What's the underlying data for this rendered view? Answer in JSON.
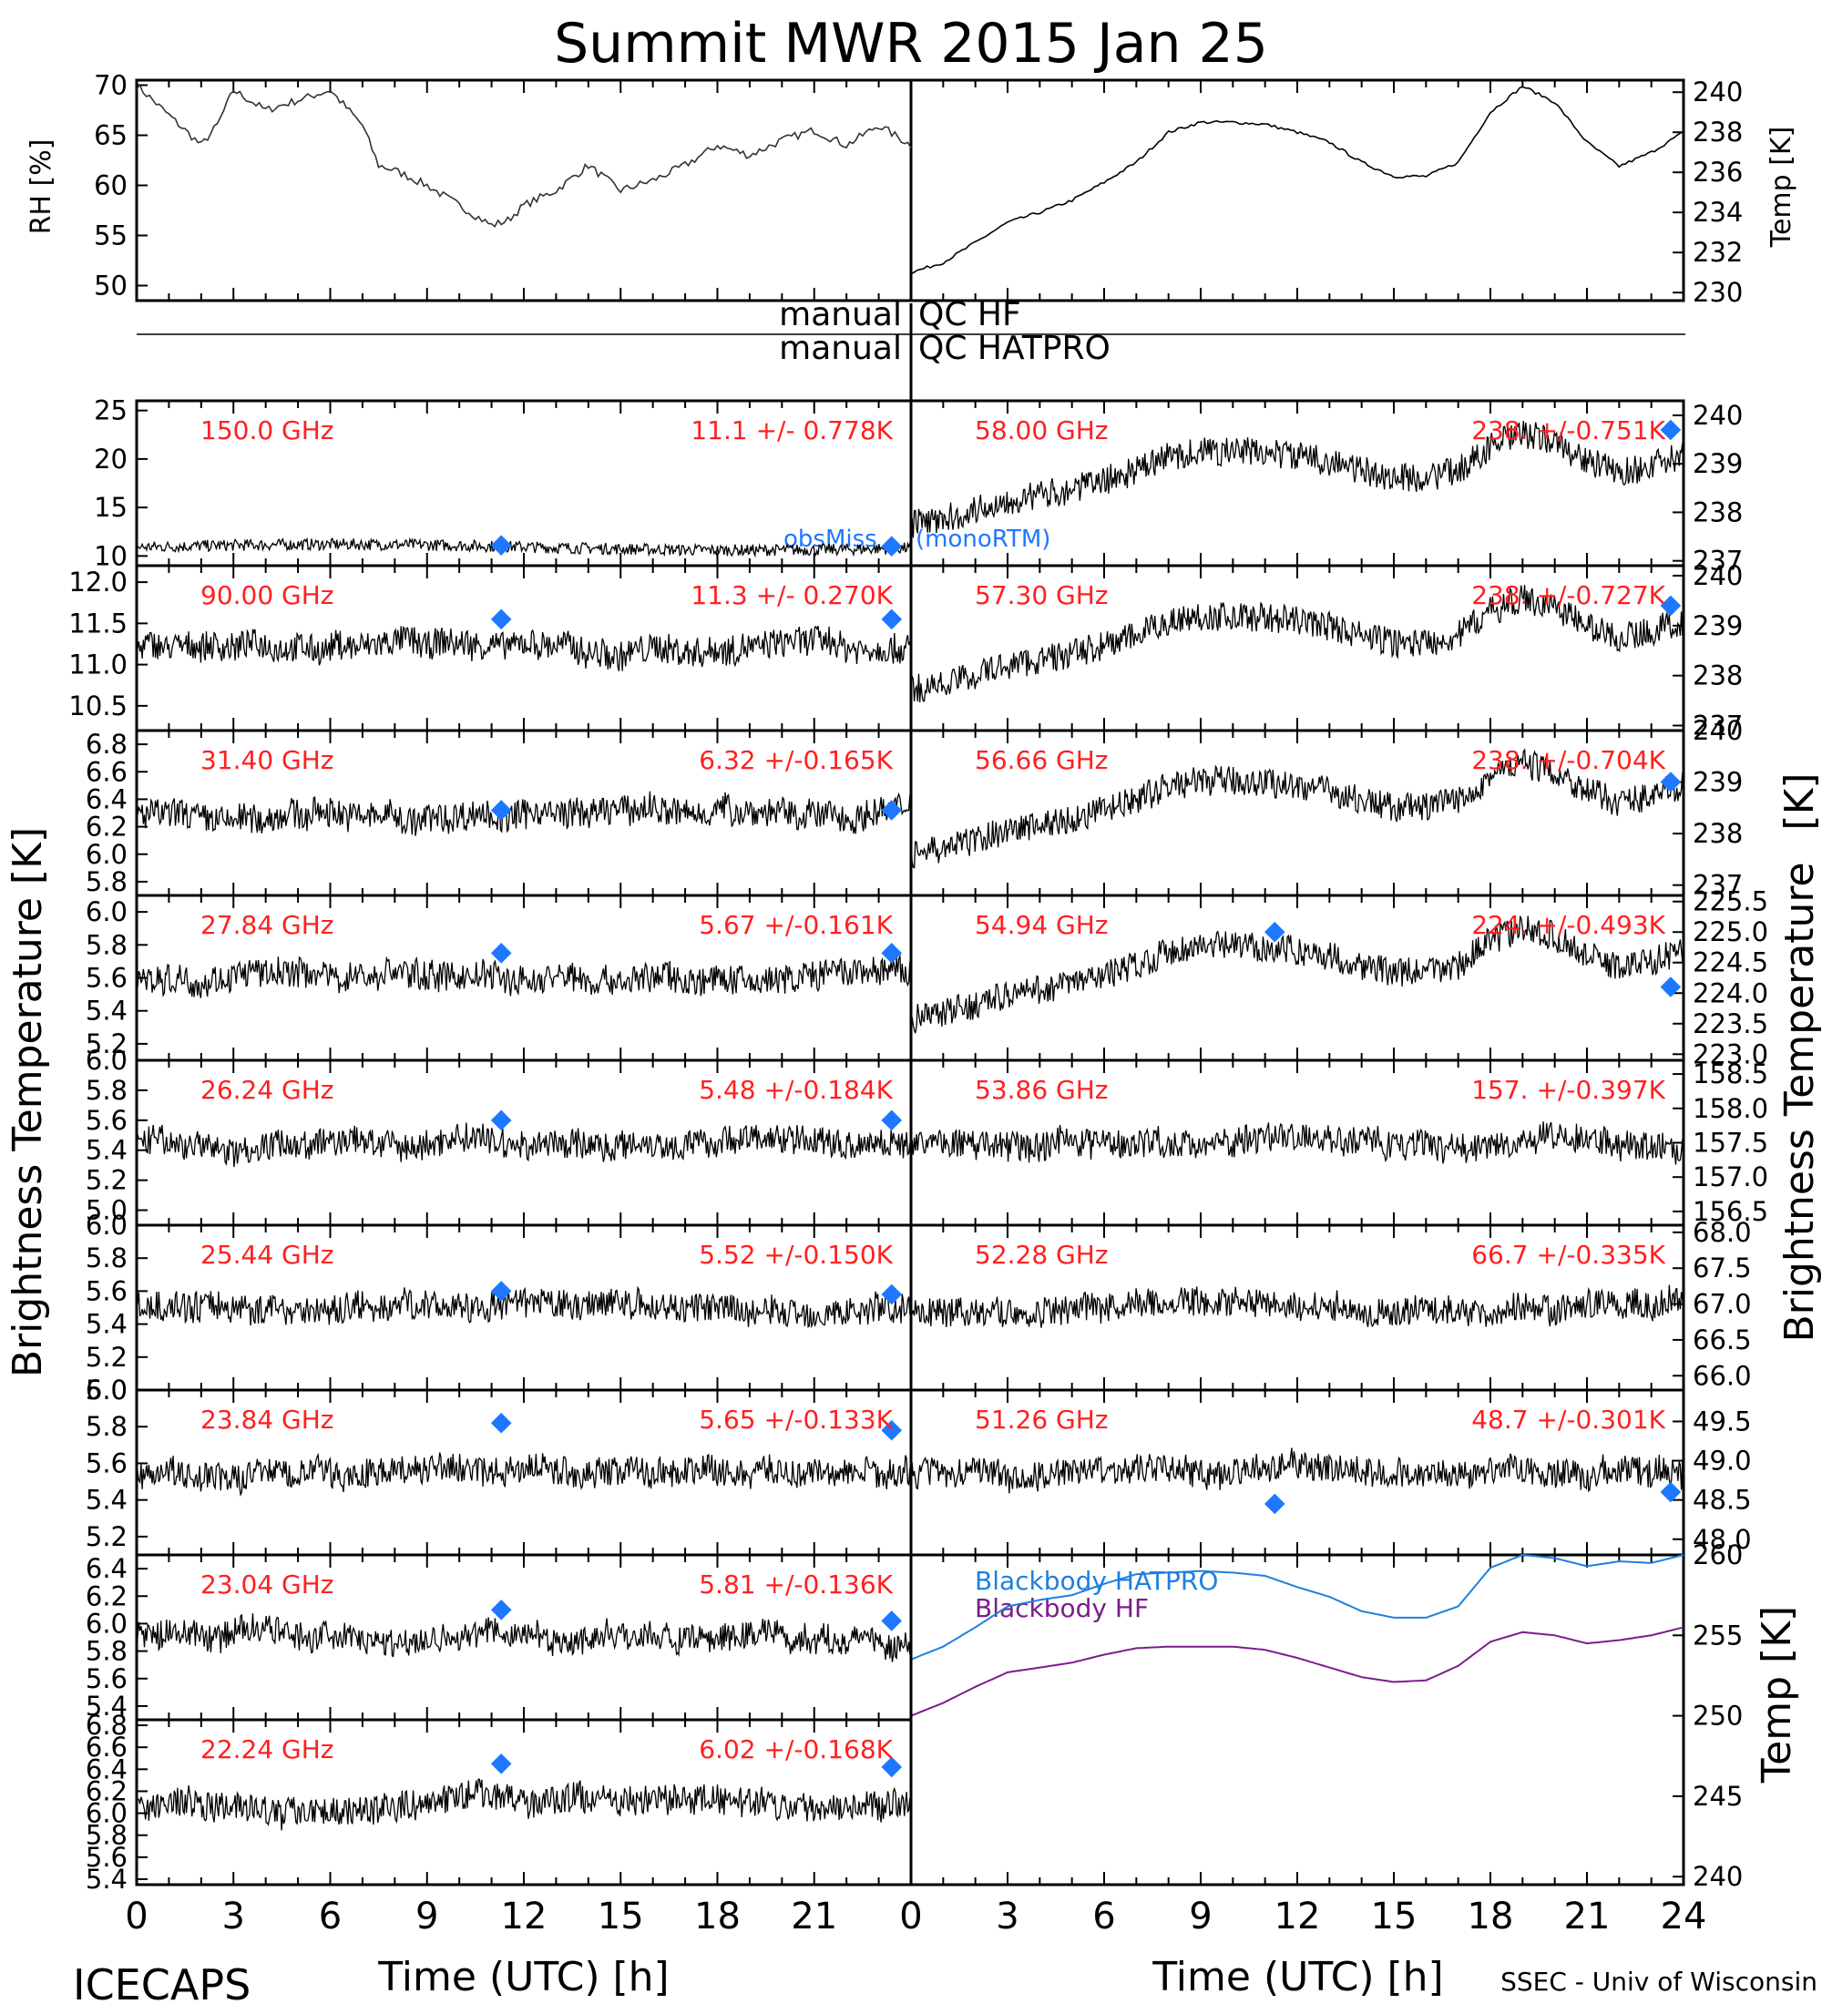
{
  "title": "Summit MWR 2015 Jan 25",
  "footer": {
    "left": "ICECAPS",
    "right": "SSEC - Univ of Wisconsin"
  },
  "axis": {
    "xlabel": "Time (UTC) [h]",
    "xticks": [
      "0",
      "3",
      "6",
      "9",
      "12",
      "15",
      "18",
      "21",
      "24"
    ],
    "left_ylabel": "Brightness Temperature [K]",
    "right_ylabel": "Brightness Temperature",
    "unit_right": "[K]"
  },
  "colors": {
    "channel_text": "#ff2020",
    "model_marker": "#1e78ff",
    "series": "#000000",
    "bb_hatpro": "#1f7fe0",
    "bb_hf": "#7a1f8a"
  },
  "qc": {
    "hf_left": "manual",
    "hf_right": "QC HF",
    "hatpro_left": "manual",
    "hatpro_right": "QC HATPRO"
  },
  "model_labels": {
    "a": "obsMiss",
    "b": "(monoRTM)"
  },
  "met": {
    "rh": {
      "ylabel": "RH [%]",
      "ticks": [
        "50",
        "55",
        "60",
        "65",
        "70"
      ],
      "ylim": [
        48.5,
        70.5
      ]
    },
    "temp": {
      "ylabel": "Temp [K]",
      "ticks": [
        "230",
        "232",
        "234",
        "236",
        "238",
        "240"
      ],
      "ylim": [
        229.6,
        240.6
      ]
    }
  },
  "bb": {
    "ylabel": "Temp [K]",
    "ticks": [
      "240",
      "245",
      "250",
      "255",
      "260"
    ],
    "ylim": [
      239.5,
      260
    ],
    "hatpro_label": "Blackbody HATPRO",
    "hf_label": "Blackbody HF"
  },
  "channels": {
    "left": [
      {
        "freq": "150.0 GHz",
        "stat": "11.1 +/- 0.778K",
        "ticks": [
          "10",
          "15",
          "20",
          "25"
        ]
      },
      {
        "freq": "90.00 GHz",
        "stat": "11.3 +/- 0.270K",
        "ticks": [
          "10.5",
          "11.0",
          "11.5",
          "12.0"
        ]
      },
      {
        "freq": "31.40 GHz",
        "stat": "6.32 +/-0.165K",
        "ticks": [
          "5.8",
          "6.0",
          "6.2",
          "6.4",
          "6.6",
          "6.8"
        ]
      },
      {
        "freq": "27.84 GHz",
        "stat": "5.67 +/-0.161K",
        "ticks": [
          "5.2",
          "5.4",
          "5.6",
          "5.8",
          "6.0"
        ]
      },
      {
        "freq": "26.24 GHz",
        "stat": "5.48 +/-0.184K",
        "ticks": [
          "5.0",
          "5.2",
          "5.4",
          "5.6",
          "5.8",
          "6.0"
        ]
      },
      {
        "freq": "25.44 GHz",
        "stat": "5.52 +/-0.150K",
        "ticks": [
          "5.0",
          "5.2",
          "5.4",
          "5.6",
          "5.8",
          "6.0"
        ]
      },
      {
        "freq": "23.84 GHz",
        "stat": "5.65 +/-0.133K",
        "ticks": [
          "5.2",
          "5.4",
          "5.6",
          "5.8",
          "6.0"
        ]
      },
      {
        "freq": "23.04 GHz",
        "stat": "5.81 +/-0.136K",
        "ticks": [
          "5.4",
          "5.6",
          "5.8",
          "6.0",
          "6.2",
          "6.4"
        ]
      },
      {
        "freq": "22.24 GHz",
        "stat": "6.02 +/-0.168K",
        "ticks": [
          "5.4",
          "5.6",
          "5.8",
          "6.0",
          "6.2",
          "6.4",
          "6.6",
          "6.8"
        ]
      }
    ],
    "right": [
      {
        "freq": "58.00 GHz",
        "stat": "238. +/-0.751K",
        "ticks": [
          "237",
          "238",
          "239",
          "240"
        ]
      },
      {
        "freq": "57.30 GHz",
        "stat": "238. +/-0.727K",
        "ticks": [
          "237",
          "238",
          "239",
          "240"
        ]
      },
      {
        "freq": "56.66 GHz",
        "stat": "238. +/-0.704K",
        "ticks": [
          "237",
          "238",
          "239",
          "240"
        ]
      },
      {
        "freq": "54.94 GHz",
        "stat": "224. +/-0.493K",
        "ticks": [
          "223.0",
          "223.5",
          "224.0",
          "224.5",
          "225.0",
          "225.5"
        ]
      },
      {
        "freq": "53.86 GHz",
        "stat": "157. +/-0.397K",
        "ticks": [
          "156.5",
          "157.0",
          "157.5",
          "158.0",
          "158.5"
        ]
      },
      {
        "freq": "52.28 GHz",
        "stat": "66.7 +/-0.335K",
        "ticks": [
          "66.0",
          "66.5",
          "67.0",
          "67.5",
          "68.0"
        ]
      },
      {
        "freq": "51.26 GHz",
        "stat": "48.7 +/-0.301K",
        "ticks": [
          "48.0",
          "48.5",
          "49.0",
          "49.5"
        ]
      }
    ]
  },
  "chart_data": [
    {
      "type": "line",
      "title": "",
      "ylabel": "RH [%]",
      "xlabel": "",
      "xlim": [
        0,
        24
      ],
      "ylim": [
        48.5,
        70.5
      ],
      "series": [
        {
          "name": "",
          "x": [
            0,
            1,
            2,
            2.5,
            3,
            4,
            5,
            6,
            7,
            7.5,
            8,
            9,
            10,
            11,
            11.5,
            12,
            13,
            14,
            15,
            16,
            17,
            18,
            19,
            20,
            21,
            22,
            23,
            24
          ],
          "y": [
            70,
            67,
            64,
            66,
            69.5,
            67.5,
            68.5,
            69.5,
            66,
            62,
            61.5,
            60,
            58,
            56,
            56.5,
            58,
            59.5,
            62,
            59.5,
            60.5,
            62,
            64,
            63,
            64.5,
            65.5,
            64,
            66,
            64
          ]
        }
      ]
    },
    {
      "type": "line",
      "title": "",
      "ylabel": "Temp [K]",
      "xlabel": "",
      "xlim": [
        0,
        24
      ],
      "ylim": [
        229.6,
        240.6
      ],
      "series": [
        {
          "name": "",
          "x": [
            0,
            1,
            2,
            3,
            4,
            5,
            6,
            7,
            8,
            9,
            10,
            11,
            12,
            13,
            14,
            15,
            16,
            17,
            18,
            19,
            20,
            21,
            22,
            23,
            24
          ],
          "y": [
            231,
            231.5,
            232.5,
            233.5,
            234,
            234.6,
            235.5,
            236.5,
            238,
            238.5,
            238.5,
            238.4,
            238,
            237.5,
            236.5,
            235.8,
            235.8,
            236.5,
            239,
            240.3,
            239.5,
            237.5,
            236.3,
            237,
            238
          ]
        }
      ]
    },
    {
      "type": "line",
      "title": "",
      "ylabel": "Temp [K]",
      "xlabel": "Time (UTC) [h]",
      "xlim": [
        0,
        24
      ],
      "ylim": [
        239.5,
        260
      ],
      "series": [
        {
          "name": "Blackbody HATPRO",
          "x": [
            0,
            1,
            2,
            3,
            4,
            5,
            6,
            7,
            8,
            9,
            10,
            11,
            12,
            13,
            14,
            15,
            16,
            17,
            18,
            19,
            20,
            21,
            22,
            23,
            24
          ],
          "y": [
            253.5,
            254.3,
            255.5,
            256.8,
            257.2,
            257.5,
            258.2,
            258.8,
            258.9,
            259,
            258.9,
            258.7,
            258,
            257.4,
            256.5,
            256.1,
            256.1,
            256.8,
            259.2,
            260,
            259.8,
            259.3,
            259.6,
            259.5,
            260
          ]
        },
        {
          "name": "Blackbody HF",
          "x": [
            0,
            1,
            2,
            3,
            4,
            5,
            6,
            7,
            8,
            9,
            10,
            11,
            12,
            13,
            14,
            15,
            16,
            17,
            18,
            19,
            20,
            21,
            22,
            23,
            24
          ],
          "y": [
            250,
            250.8,
            251.8,
            252.7,
            253,
            253.3,
            253.8,
            254.2,
            254.3,
            254.3,
            254.3,
            254.1,
            253.6,
            253,
            252.4,
            252.1,
            252.2,
            253.1,
            254.6,
            255.2,
            255,
            254.5,
            254.7,
            255,
            255.5
          ]
        }
      ]
    },
    {
      "type": "scatter",
      "title": "",
      "ylabel": "Brightness Temperature [K]",
      "xlabel": "Time (UTC) [h]",
      "xlim": [
        0,
        24
      ],
      "series": [
        {
          "name": "150.0 GHz",
          "ylim": [
            9,
            26
          ],
          "markers": [
            {
              "x": 11.3,
              "y": 11.1
            },
            {
              "x": 23.4,
              "y": 11.0
            }
          ]
        },
        {
          "name": "90.00 GHz",
          "ylim": [
            10.2,
            12.2
          ],
          "markers": [
            {
              "x": 11.3,
              "y": 11.55
            },
            {
              "x": 23.4,
              "y": 11.55
            }
          ]
        },
        {
          "name": "31.40 GHz",
          "ylim": [
            5.7,
            6.9
          ],
          "markers": [
            {
              "x": 11.3,
              "y": 6.32
            },
            {
              "x": 23.4,
              "y": 6.32
            }
          ]
        },
        {
          "name": "27.84 GHz",
          "ylim": [
            5.1,
            6.1
          ],
          "markers": [
            {
              "x": 11.3,
              "y": 5.75
            },
            {
              "x": 23.4,
              "y": 5.75
            }
          ]
        },
        {
          "name": "26.24 GHz",
          "ylim": [
            4.9,
            6.0
          ],
          "markers": [
            {
              "x": 11.3,
              "y": 5.6
            },
            {
              "x": 23.4,
              "y": 5.6
            }
          ]
        },
        {
          "name": "25.44 GHz",
          "ylim": [
            5.0,
            6.0
          ],
          "markers": [
            {
              "x": 11.3,
              "y": 5.6
            },
            {
              "x": 23.4,
              "y": 5.58
            }
          ]
        },
        {
          "name": "23.84 GHz",
          "ylim": [
            5.1,
            6.0
          ],
          "markers": [
            {
              "x": 11.3,
              "y": 5.82
            },
            {
              "x": 23.4,
              "y": 5.78
            }
          ]
        },
        {
          "name": "23.04 GHz",
          "ylim": [
            5.3,
            6.5
          ],
          "markers": [
            {
              "x": 11.3,
              "y": 6.1
            },
            {
              "x": 23.4,
              "y": 6.02
            }
          ]
        },
        {
          "name": "22.24 GHz",
          "ylim": [
            5.35,
            6.85
          ],
          "markers": [
            {
              "x": 11.3,
              "y": 6.45
            },
            {
              "x": 23.4,
              "y": 6.42
            }
          ]
        },
        {
          "name": "58.00 GHz",
          "ylim": [
            236.9,
            240.3
          ],
          "markers": [
            {
              "x": 23.6,
              "y": 239.7
            }
          ]
        },
        {
          "name": "57.30 GHz",
          "ylim": [
            236.9,
            240.2
          ],
          "markers": [
            {
              "x": 23.6,
              "y": 239.4
            }
          ]
        },
        {
          "name": "56.66 GHz",
          "ylim": [
            236.8,
            240.0
          ],
          "markers": [
            {
              "x": 23.6,
              "y": 239.0
            }
          ]
        },
        {
          "name": "54.94 GHz",
          "ylim": [
            222.9,
            225.6
          ],
          "markers": [
            {
              "x": 11.3,
              "y": 225.0
            },
            {
              "x": 23.6,
              "y": 224.1
            }
          ]
        },
        {
          "name": "53.86 GHz",
          "ylim": [
            156.3,
            158.7
          ],
          "markers": []
        },
        {
          "name": "52.28 GHz",
          "ylim": [
            65.8,
            68.1
          ],
          "markers": []
        },
        {
          "name": "51.26 GHz",
          "ylim": [
            47.8,
            49.9
          ],
          "markers": [
            {
              "x": 11.3,
              "y": 48.45
            },
            {
              "x": 23.6,
              "y": 48.6
            }
          ]
        }
      ]
    }
  ]
}
